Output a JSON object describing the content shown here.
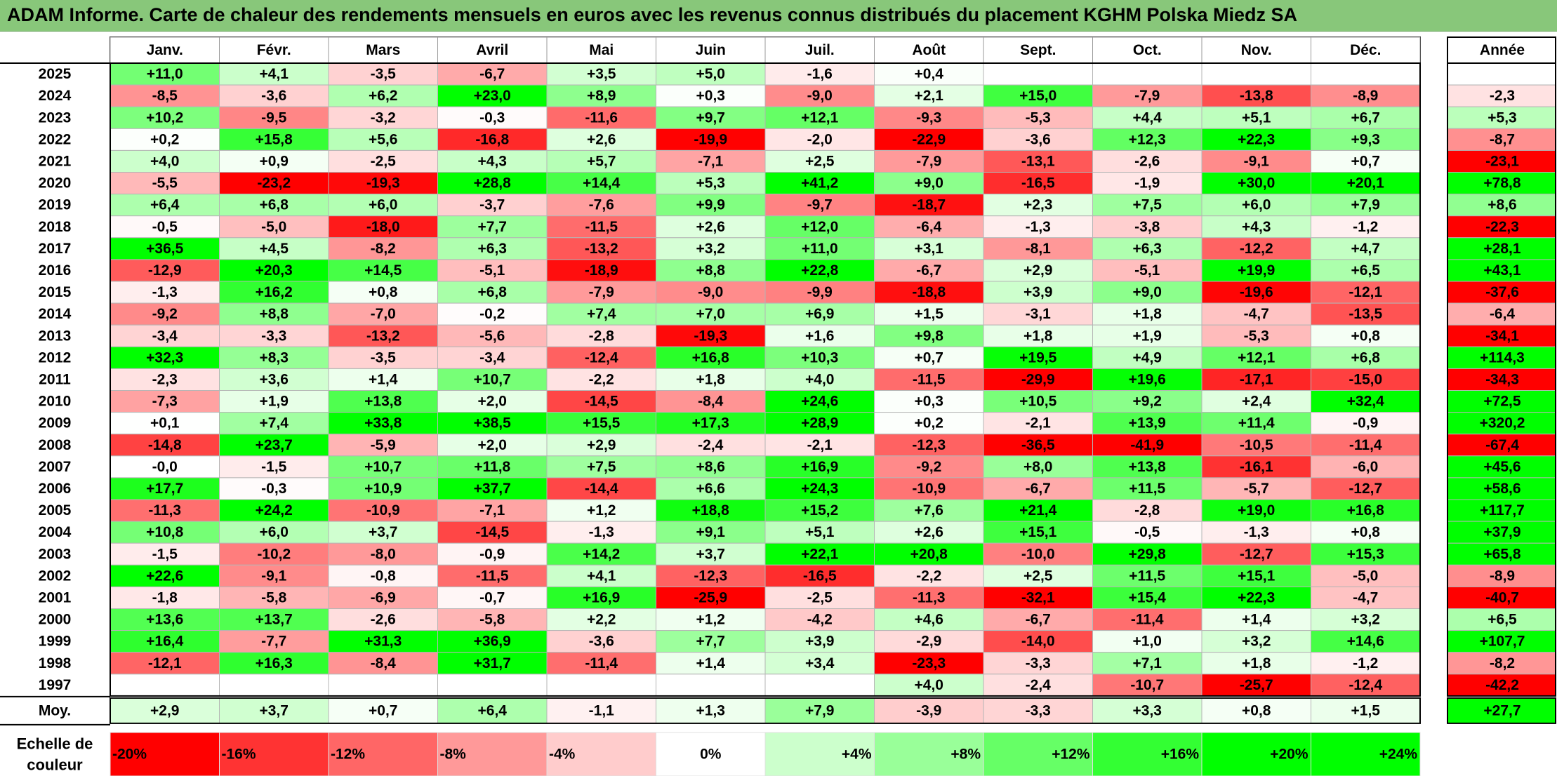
{
  "chart_data": {
    "type": "heatmap",
    "title": "ADAM Informe. Carte de chaleur des rendements mensuels en euros avec les revenus connus distribués du placement KGHM Polska Miedz SA",
    "columns": [
      "Janv.",
      "Févr.",
      "Mars",
      "Avril",
      "Mai",
      "Juin",
      "Juil.",
      "Août",
      "Sept.",
      "Oct.",
      "Nov.",
      "Déc."
    ],
    "year_column_label": "Année",
    "rows": [
      {
        "year": "2025",
        "values": [
          "+11,0",
          "+4,1",
          "-3,5",
          "-6,7",
          "+3,5",
          "+5,0",
          "-1,6",
          "+0,4",
          "",
          "",
          "",
          ""
        ],
        "annual": ""
      },
      {
        "year": "2024",
        "values": [
          "-8,5",
          "-3,6",
          "+6,2",
          "+23,0",
          "+8,9",
          "+0,3",
          "-9,0",
          "+2,1",
          "+15,0",
          "-7,9",
          "-13,8",
          "-8,9"
        ],
        "annual": "-2,3"
      },
      {
        "year": "2023",
        "values": [
          "+10,2",
          "-9,5",
          "-3,2",
          "-0,3",
          "-11,6",
          "+9,7",
          "+12,1",
          "-9,3",
          "-5,3",
          "+4,4",
          "+5,1",
          "+6,7"
        ],
        "annual": "+5,3"
      },
      {
        "year": "2022",
        "values": [
          "+0,2",
          "+15,8",
          "+5,6",
          "-16,8",
          "+2,6",
          "-19,9",
          "-2,0",
          "-22,9",
          "-3,6",
          "+12,3",
          "+22,3",
          "+9,3"
        ],
        "annual": "-8,7"
      },
      {
        "year": "2021",
        "values": [
          "+4,0",
          "+0,9",
          "-2,5",
          "+4,3",
          "+5,7",
          "-7,1",
          "+2,5",
          "-7,9",
          "-13,1",
          "-2,6",
          "-9,1",
          "+0,7"
        ],
        "annual": "-23,1"
      },
      {
        "year": "2020",
        "values": [
          "-5,5",
          "-23,2",
          "-19,3",
          "+28,8",
          "+14,4",
          "+5,3",
          "+41,2",
          "+9,0",
          "-16,5",
          "-1,9",
          "+30,0",
          "+20,1"
        ],
        "annual": "+78,8"
      },
      {
        "year": "2019",
        "values": [
          "+6,4",
          "+6,8",
          "+6,0",
          "-3,7",
          "-7,6",
          "+9,9",
          "-9,7",
          "-18,7",
          "+2,3",
          "+7,5",
          "+6,0",
          "+7,9"
        ],
        "annual": "+8,6"
      },
      {
        "year": "2018",
        "values": [
          "-0,5",
          "-5,0",
          "-18,0",
          "+7,7",
          "-11,5",
          "+2,6",
          "+12,0",
          "-6,4",
          "-1,3",
          "-3,8",
          "+4,3",
          "-1,2"
        ],
        "annual": "-22,3"
      },
      {
        "year": "2017",
        "values": [
          "+36,5",
          "+4,5",
          "-8,2",
          "+6,3",
          "-13,2",
          "+3,2",
          "+11,0",
          "+3,1",
          "-8,1",
          "+6,3",
          "-12,2",
          "+4,7"
        ],
        "annual": "+28,1"
      },
      {
        "year": "2016",
        "values": [
          "-12,9",
          "+20,3",
          "+14,5",
          "-5,1",
          "-18,9",
          "+8,8",
          "+22,8",
          "-6,7",
          "+2,9",
          "-5,1",
          "+19,9",
          "+6,5"
        ],
        "annual": "+43,1"
      },
      {
        "year": "2015",
        "values": [
          "-1,3",
          "+16,2",
          "+0,8",
          "+6,8",
          "-7,9",
          "-9,0",
          "-9,9",
          "-18,8",
          "+3,9",
          "+9,0",
          "-19,6",
          "-12,1"
        ],
        "annual": "-37,6"
      },
      {
        "year": "2014",
        "values": [
          "-9,2",
          "+8,8",
          "-7,0",
          "-0,2",
          "+7,4",
          "+7,0",
          "+6,9",
          "+1,5",
          "-3,1",
          "+1,8",
          "-4,7",
          "-13,5"
        ],
        "annual": "-6,4"
      },
      {
        "year": "2013",
        "values": [
          "-3,4",
          "-3,3",
          "-13,2",
          "-5,6",
          "-2,8",
          "-19,3",
          "+1,6",
          "+9,8",
          "+1,8",
          "+1,9",
          "-5,3",
          "+0,8"
        ],
        "annual": "-34,1"
      },
      {
        "year": "2012",
        "values": [
          "+32,3",
          "+8,3",
          "-3,5",
          "-3,4",
          "-12,4",
          "+16,8",
          "+10,3",
          "+0,7",
          "+19,5",
          "+4,9",
          "+12,1",
          "+6,8"
        ],
        "annual": "+114,3"
      },
      {
        "year": "2011",
        "values": [
          "-2,3",
          "+3,6",
          "+1,4",
          "+10,7",
          "-2,2",
          "+1,8",
          "+4,0",
          "-11,5",
          "-29,9",
          "+19,6",
          "-17,1",
          "-15,0"
        ],
        "annual": "-34,3"
      },
      {
        "year": "2010",
        "values": [
          "-7,3",
          "+1,9",
          "+13,8",
          "+2,0",
          "-14,5",
          "-8,4",
          "+24,6",
          "+0,3",
          "+10,5",
          "+9,2",
          "+2,4",
          "+32,4"
        ],
        "annual": "+72,5"
      },
      {
        "year": "2009",
        "values": [
          "+0,1",
          "+7,4",
          "+33,8",
          "+38,5",
          "+15,5",
          "+17,3",
          "+28,9",
          "+0,2",
          "-2,1",
          "+13,9",
          "+11,4",
          "-0,9"
        ],
        "annual": "+320,2"
      },
      {
        "year": "2008",
        "values": [
          "-14,8",
          "+23,7",
          "-5,9",
          "+2,0",
          "+2,9",
          "-2,4",
          "-2,1",
          "-12,3",
          "-36,5",
          "-41,9",
          "-10,5",
          "-11,4"
        ],
        "annual": "-67,4"
      },
      {
        "year": "2007",
        "values": [
          "-0,0",
          "-1,5",
          "+10,7",
          "+11,8",
          "+7,5",
          "+8,6",
          "+16,9",
          "-9,2",
          "+8,0",
          "+13,8",
          "-16,1",
          "-6,0"
        ],
        "annual": "+45,6"
      },
      {
        "year": "2006",
        "values": [
          "+17,7",
          "-0,3",
          "+10,9",
          "+37,7",
          "-14,4",
          "+6,6",
          "+24,3",
          "-10,9",
          "-6,7",
          "+11,5",
          "-5,7",
          "-12,7"
        ],
        "annual": "+58,6"
      },
      {
        "year": "2005",
        "values": [
          "-11,3",
          "+24,2",
          "-10,9",
          "-7,1",
          "+1,2",
          "+18,8",
          "+15,2",
          "+7,6",
          "+21,4",
          "-2,8",
          "+19,0",
          "+16,8"
        ],
        "annual": "+117,7"
      },
      {
        "year": "2004",
        "values": [
          "+10,8",
          "+6,0",
          "+3,7",
          "-14,5",
          "-1,3",
          "+9,1",
          "+5,1",
          "+2,6",
          "+15,1",
          "-0,5",
          "-1,3",
          "+0,8"
        ],
        "annual": "+37,9"
      },
      {
        "year": "2003",
        "values": [
          "-1,5",
          "-10,2",
          "-8,0",
          "-0,9",
          "+14,2",
          "+3,7",
          "+22,1",
          "+20,8",
          "-10,0",
          "+29,8",
          "-12,7",
          "+15,3"
        ],
        "annual": "+65,8"
      },
      {
        "year": "2002",
        "values": [
          "+22,6",
          "-9,1",
          "-0,8",
          "-11,5",
          "+4,1",
          "-12,3",
          "-16,5",
          "-2,2",
          "+2,5",
          "+11,5",
          "+15,1",
          "-5,0"
        ],
        "annual": "-8,9"
      },
      {
        "year": "2001",
        "values": [
          "-1,8",
          "-5,8",
          "-6,9",
          "-0,7",
          "+16,9",
          "-25,9",
          "-2,5",
          "-11,3",
          "-32,1",
          "+15,4",
          "+22,3",
          "-4,7"
        ],
        "annual": "-40,7"
      },
      {
        "year": "2000",
        "values": [
          "+13,6",
          "+13,7",
          "-2,6",
          "-5,8",
          "+2,2",
          "+1,2",
          "-4,2",
          "+4,6",
          "-6,7",
          "-11,4",
          "+1,4",
          "+3,2"
        ],
        "annual": "+6,5"
      },
      {
        "year": "1999",
        "values": [
          "+16,4",
          "-7,7",
          "+31,3",
          "+36,9",
          "-3,6",
          "+7,7",
          "+3,9",
          "-2,9",
          "-14,0",
          "+1,0",
          "+3,2",
          "+14,6"
        ],
        "annual": "+107,7"
      },
      {
        "year": "1998",
        "values": [
          "-12,1",
          "+16,3",
          "-8,4",
          "+31,7",
          "-11,4",
          "+1,4",
          "+3,4",
          "-23,3",
          "-3,3",
          "+7,1",
          "+1,8",
          "-1,2"
        ],
        "annual": "-8,2"
      },
      {
        "year": "1997",
        "values": [
          "",
          "",
          "",
          "",
          "",
          "",
          "",
          "+4,0",
          "-2,4",
          "-10,7",
          "-25,7",
          "-12,4"
        ],
        "annual": "-42,2"
      }
    ],
    "average": {
      "label": "Moy.",
      "values": [
        "+2,9",
        "+3,7",
        "+0,7",
        "+6,4",
        "-1,1",
        "+1,3",
        "+7,9",
        "-3,9",
        "-3,3",
        "+3,3",
        "+0,8",
        "+1,5"
      ],
      "annual": "+27,7"
    },
    "color_scale": {
      "label_line1": "Echelle de",
      "label_line2": "couleur",
      "steps": [
        {
          "label": "-20%",
          "value": -20,
          "color": "#ff0000"
        },
        {
          "label": "-16%",
          "value": -16,
          "color": "#ff3333"
        },
        {
          "label": "-12%",
          "value": -12,
          "color": "#ff6666"
        },
        {
          "label": "-8%",
          "value": -8,
          "color": "#ff9999"
        },
        {
          "label": "-4%",
          "value": -4,
          "color": "#ffcccc"
        },
        {
          "label": "0%",
          "value": 0,
          "color": "#ffffff"
        },
        {
          "label": "+4%",
          "value": 4,
          "color": "#ccffcc"
        },
        {
          "label": "+8%",
          "value": 8,
          "color": "#99ff99"
        },
        {
          "label": "+12%",
          "value": 12,
          "color": "#66ff66"
        },
        {
          "label": "+16%",
          "value": 16,
          "color": "#33ff33"
        },
        {
          "label": "+20%",
          "value": 20,
          "color": "#00ff00"
        },
        {
          "label": "+24%",
          "value": 24,
          "color": "#00ff00"
        }
      ]
    },
    "colors": {
      "negative_max": "#ff0000",
      "neutral": "#ffffff",
      "positive_max": "#00ff00",
      "title_bar": "#88c77a"
    }
  }
}
